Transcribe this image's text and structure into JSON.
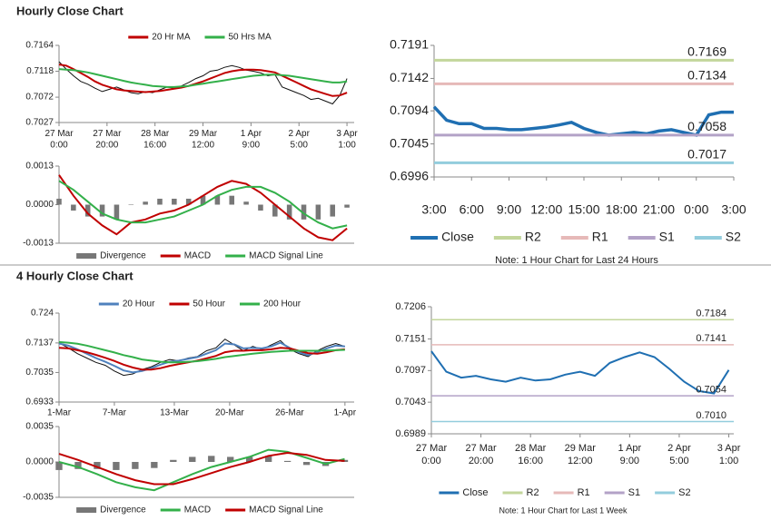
{
  "sections": [
    {
      "title": "Hourly Close Chart"
    },
    {
      "title": "4 Hourly Close Chart"
    }
  ],
  "chart_data": [
    {
      "type": "line",
      "legend": "top",
      "x": [
        0,
        3,
        6,
        9,
        12,
        15,
        18,
        21,
        24,
        27,
        30,
        33,
        36,
        39,
        42,
        45,
        48,
        51,
        54,
        57,
        60,
        63,
        66,
        69,
        72,
        75,
        78,
        81,
        84,
        87,
        90,
        93,
        96,
        99,
        102,
        105,
        108,
        111,
        114,
        117,
        120
      ],
      "xlim": [
        0,
        123
      ],
      "ylim": [
        0.7027,
        0.7164
      ],
      "yticks": [
        0.7027,
        0.7072,
        0.7118,
        0.7164
      ],
      "xticks": [
        {
          "value": 0,
          "label": "27 Mar\n0:00"
        },
        {
          "value": 20,
          "label": "27 Mar\n20:00"
        },
        {
          "value": 40,
          "label": "28 Mar\n16:00"
        },
        {
          "value": 60,
          "label": "29 Mar\n12:00"
        },
        {
          "value": 80,
          "label": "1 Apr\n9:00"
        },
        {
          "value": 100,
          "label": "2 Apr\n5:00"
        },
        {
          "value": 120,
          "label": "3 Apr\n1:00"
        }
      ],
      "series": [
        {
          "color": "#111111",
          "values": [
            0.7135,
            0.7122,
            0.711,
            0.71,
            0.7095,
            0.7088,
            0.7082,
            0.7086,
            0.709,
            0.7085,
            0.708,
            0.7078,
            0.7082,
            0.708,
            0.7085,
            0.709,
            0.7088,
            0.7092,
            0.7098,
            0.7105,
            0.711,
            0.7118,
            0.712,
            0.7125,
            0.7128,
            0.7125,
            0.712,
            0.7118,
            0.7115,
            0.711,
            0.7112,
            0.709,
            0.7085,
            0.708,
            0.7075,
            0.7068,
            0.707,
            0.7065,
            0.706,
            0.7075,
            0.7105
          ]
        },
        {
          "name": "20 Hr MA",
          "color": "#c00000",
          "values": [
            0.713,
            0.7128,
            0.7122,
            0.7115,
            0.7108,
            0.71,
            0.7094,
            0.709,
            0.7086,
            0.7084,
            0.7083,
            0.7082,
            0.7081,
            0.7082,
            0.7083,
            0.7085,
            0.7087,
            0.7089,
            0.7092,
            0.7096,
            0.71,
            0.7105,
            0.711,
            0.7115,
            0.7118,
            0.712,
            0.7121,
            0.7121,
            0.712,
            0.7118,
            0.7116,
            0.711,
            0.7104,
            0.7098,
            0.7092,
            0.7086,
            0.7082,
            0.7078,
            0.7074,
            0.7075,
            0.708
          ]
        },
        {
          "name": "50 Hrs MA",
          "color": "#33b04a",
          "values": [
            0.7122,
            0.7121,
            0.712,
            0.7118,
            0.7116,
            0.7113,
            0.711,
            0.7107,
            0.7104,
            0.7101,
            0.7098,
            0.7096,
            0.7094,
            0.7092,
            0.7091,
            0.709,
            0.709,
            0.7091,
            0.7092,
            0.7094,
            0.7096,
            0.7098,
            0.71,
            0.7102,
            0.7104,
            0.7106,
            0.7108,
            0.711,
            0.7111,
            0.7112,
            0.7112,
            0.7111,
            0.711,
            0.7108,
            0.7106,
            0.7104,
            0.7102,
            0.71,
            0.7098,
            0.7098,
            0.71
          ]
        }
      ]
    },
    {
      "type": "combo",
      "legend": "bottom",
      "x": [
        0,
        6,
        12,
        18,
        24,
        30,
        36,
        42,
        48,
        54,
        60,
        66,
        72,
        78,
        84,
        90,
        96,
        102,
        108,
        114,
        120
      ],
      "xlim": [
        0,
        123
      ],
      "ylim": [
        -0.0013,
        0.0013
      ],
      "yticks": [
        -0.0013,
        {
          "value": 0,
          "label": "0.0000"
        },
        0.0013
      ],
      "series": [
        {
          "name": "Divergence",
          "type": "bar",
          "color": "#777777",
          "values": [
            0.0002,
            -0.0002,
            -0.0004,
            -0.0004,
            -0.0005,
            0,
            0.0001,
            0.0002,
            0.0002,
            0.0002,
            0.0003,
            0.0003,
            0.0003,
            0.0001,
            -0.0002,
            -0.0004,
            -0.0005,
            -0.0005,
            -0.0005,
            -0.0004,
            -0.0001
          ]
        },
        {
          "name": "MACD",
          "type": "line",
          "color": "#c00000",
          "values": [
            0.001,
            0.0003,
            -0.0003,
            -0.0007,
            -0.001,
            -0.0006,
            -0.0005,
            -0.0003,
            -0.0002,
            0,
            0.0003,
            0.0006,
            0.0008,
            0.0007,
            0.0004,
            0,
            -0.0004,
            -0.0008,
            -0.0011,
            -0.0012,
            -0.0008
          ]
        },
        {
          "name": "MACD Signal Line",
          "type": "line",
          "color": "#33b04a",
          "values": [
            0.0008,
            0.0005,
            0.0001,
            -0.0003,
            -0.0005,
            -0.0006,
            -0.0006,
            -0.0005,
            -0.0004,
            -0.0002,
            0,
            0.0003,
            0.0005,
            0.0006,
            0.0006,
            0.0004,
            0.0001,
            -0.0003,
            -0.0006,
            -0.0008,
            -0.0007
          ]
        }
      ]
    },
    {
      "type": "line",
      "legend": "bottom",
      "note": "Note: 1 Hour Chart for Last 24 Hours",
      "x": [
        0,
        1,
        2,
        3,
        4,
        5,
        6,
        7,
        8,
        9,
        10,
        11,
        12,
        13,
        14,
        15,
        16,
        17,
        18,
        19,
        20,
        21,
        22,
        23,
        24
      ],
      "xlim": [
        0,
        24
      ],
      "ylim": [
        0.6996,
        0.7191
      ],
      "yticks": [
        0.6996,
        0.7045,
        0.7094,
        0.7142,
        0.7191
      ],
      "xticks": [
        {
          "value": 0,
          "label": "3:00"
        },
        {
          "value": 3,
          "label": "6:00"
        },
        {
          "value": 6,
          "label": "9:00"
        },
        {
          "value": 9,
          "label": "12:00"
        },
        {
          "value": 12,
          "label": "15:00"
        },
        {
          "value": 15,
          "label": "18:00"
        },
        {
          "value": 18,
          "label": "21:00"
        },
        {
          "value": 21,
          "label": "0:00"
        },
        {
          "value": 24,
          "label": "3:00"
        }
      ],
      "series": [
        {
          "name": "Close",
          "color": "#1f6fb2",
          "values": [
            0.71,
            0.708,
            0.7075,
            0.7075,
            0.7068,
            0.7068,
            0.7066,
            0.7066,
            0.7068,
            0.707,
            0.7073,
            0.7077,
            0.7068,
            0.7062,
            0.7058,
            0.706,
            0.7062,
            0.706,
            0.7064,
            0.7066,
            0.7062,
            0.7058,
            0.7088,
            0.7092,
            0.7092
          ]
        },
        {
          "name": "R2",
          "color": "#c3d69b",
          "value": 0.7169
        },
        {
          "name": "R1",
          "color": "#e6b9b8",
          "value": 0.7134
        },
        {
          "name": "S1",
          "color": "#b3a2c7",
          "value": 0.7058
        },
        {
          "name": "S2",
          "color": "#93cddd",
          "value": 0.7017
        }
      ]
    },
    {
      "type": "line",
      "legend": "top",
      "x": [
        0,
        1,
        2,
        3,
        4,
        5,
        6,
        7,
        8,
        9,
        10,
        11,
        12,
        13,
        14,
        15,
        16,
        17,
        18,
        19,
        20,
        21,
        22,
        23,
        24,
        25,
        26,
        27,
        28,
        29,
        30,
        31
      ],
      "xlim": [
        0,
        32
      ],
      "ylim": [
        0.6933,
        0.724
      ],
      "yticks": [
        0.6933,
        0.7035,
        0.7137,
        0.724
      ],
      "xticks": [
        {
          "value": 0,
          "label": "1-Mar"
        },
        {
          "value": 6,
          "label": "7-Mar"
        },
        {
          "value": 12.5,
          "label": "13-Mar"
        },
        {
          "value": 18.5,
          "label": "20-Mar"
        },
        {
          "value": 25,
          "label": "26-Mar"
        },
        {
          "value": 31,
          "label": "1-Apr"
        }
      ],
      "series": [
        {
          "color": "#111111",
          "values": [
            0.7137,
            0.712,
            0.71,
            0.7085,
            0.707,
            0.706,
            0.704,
            0.7025,
            0.703,
            0.7045,
            0.7055,
            0.707,
            0.708,
            0.7075,
            0.7085,
            0.709,
            0.711,
            0.712,
            0.715,
            0.713,
            0.711,
            0.7125,
            0.7115,
            0.713,
            0.7145,
            0.7115,
            0.71,
            0.709,
            0.711,
            0.7125,
            0.7135,
            0.7125
          ]
        },
        {
          "name": "20 Hour",
          "color": "#4f81bd",
          "values": [
            0.7135,
            0.7128,
            0.7115,
            0.71,
            0.7085,
            0.7072,
            0.7058,
            0.7042,
            0.7035,
            0.704,
            0.705,
            0.7062,
            0.7072,
            0.7076,
            0.7082,
            0.7088,
            0.71,
            0.7112,
            0.7135,
            0.7132,
            0.7118,
            0.712,
            0.7118,
            0.7125,
            0.7138,
            0.712,
            0.7105,
            0.7095,
            0.7105,
            0.7118,
            0.7128,
            0.7125
          ]
        },
        {
          "name": "50 Hour",
          "color": "#c00000",
          "values": [
            0.712,
            0.7118,
            0.7112,
            0.7105,
            0.7096,
            0.7086,
            0.7075,
            0.7062,
            0.7052,
            0.7045,
            0.7045,
            0.705,
            0.7058,
            0.7064,
            0.707,
            0.7076,
            0.7084,
            0.7092,
            0.7105,
            0.711,
            0.711,
            0.7112,
            0.7112,
            0.7115,
            0.712,
            0.7118,
            0.711,
            0.7102,
            0.71,
            0.7105,
            0.7112,
            0.7115
          ]
        },
        {
          "name": "200 Hour",
          "color": "#33b04a",
          "values": [
            0.714,
            0.7138,
            0.7134,
            0.7128,
            0.712,
            0.7112,
            0.7104,
            0.7095,
            0.7088,
            0.708,
            0.7076,
            0.7072,
            0.707,
            0.707,
            0.7072,
            0.7074,
            0.7078,
            0.7082,
            0.7088,
            0.7092,
            0.7096,
            0.71,
            0.7103,
            0.7106,
            0.7108,
            0.711,
            0.711,
            0.711,
            0.711,
            0.7111,
            0.7112,
            0.7113
          ]
        }
      ]
    },
    {
      "type": "combo",
      "legend": "bottom",
      "x": [
        0,
        2,
        4,
        6,
        8,
        10,
        12,
        14,
        16,
        18,
        20,
        22,
        24,
        26,
        28,
        30
      ],
      "xlim": [
        0,
        31
      ],
      "ylim": [
        -0.0035,
        0.0035
      ],
      "yticks": [
        -0.0035,
        {
          "value": 0,
          "label": "0.0000"
        },
        0.0035
      ],
      "series": [
        {
          "name": "Divergence",
          "type": "bar",
          "color": "#777777",
          "values": [
            -0.0008,
            -0.0007,
            -0.0007,
            -0.0008,
            -0.0007,
            -0.0006,
            0.0002,
            0.0005,
            0.0006,
            0.0005,
            0.0005,
            0.0006,
            0.0001,
            -0.0003,
            -0.0004,
            0.0002
          ]
        },
        {
          "name": "MACD",
          "type": "line",
          "color": "#33b04a",
          "values": [
            0,
            -0.0005,
            -0.0012,
            -0.002,
            -0.0025,
            -0.0028,
            -0.002,
            -0.0012,
            -0.0005,
            0,
            0.0005,
            0.0012,
            0.001,
            0.0004,
            -0.0002,
            0.0003
          ]
        },
        {
          "name": "MACD Signal Line",
          "type": "line",
          "color": "#c00000",
          "values": [
            0.0008,
            0.0002,
            -0.0005,
            -0.0012,
            -0.0018,
            -0.0022,
            -0.0022,
            -0.0017,
            -0.0011,
            -0.0005,
            0,
            0.0006,
            0.0009,
            0.0007,
            0.0002,
            0.0001
          ]
        }
      ]
    },
    {
      "type": "line",
      "legend": "bottom",
      "note": "Note: 1 Hour Chart for Last 1 Week",
      "x": [
        0,
        6,
        12,
        18,
        24,
        30,
        36,
        42,
        48,
        54,
        60,
        66,
        72,
        78,
        84,
        90,
        96,
        102,
        108,
        114,
        120
      ],
      "xlim": [
        0,
        122
      ],
      "ylim": [
        0.6989,
        0.7206
      ],
      "yticks": [
        0.6989,
        0.7043,
        0.7097,
        0.7151,
        0.7206
      ],
      "xticks": [
        {
          "value": 0,
          "label": "27 Mar\n0:00"
        },
        {
          "value": 20,
          "label": "27 Mar\n20:00"
        },
        {
          "value": 40,
          "label": "28 Mar\n16:00"
        },
        {
          "value": 60,
          "label": "29 Mar\n12:00"
        },
        {
          "value": 80,
          "label": "1 Apr\n9:00"
        },
        {
          "value": 100,
          "label": "2 Apr\n5:00"
        },
        {
          "value": 120,
          "label": "3 Apr\n1:00"
        }
      ],
      "series": [
        {
          "name": "Close",
          "color": "#1f6fb2",
          "values": [
            0.713,
            0.7095,
            0.7085,
            0.7088,
            0.7082,
            0.7078,
            0.7085,
            0.708,
            0.7082,
            0.709,
            0.7095,
            0.7088,
            0.711,
            0.712,
            0.7128,
            0.712,
            0.71,
            0.7078,
            0.7062,
            0.7058,
            0.7098
          ]
        },
        {
          "name": "R2",
          "color": "#c3d69b",
          "value": 0.7184
        },
        {
          "name": "R1",
          "color": "#e6b9b8",
          "value": 0.7141
        },
        {
          "name": "S1",
          "color": "#b3a2c7",
          "value": 0.7054
        },
        {
          "name": "S2",
          "color": "#93cddd",
          "value": 0.701,
          "value_label": "0.7010"
        }
      ]
    }
  ]
}
